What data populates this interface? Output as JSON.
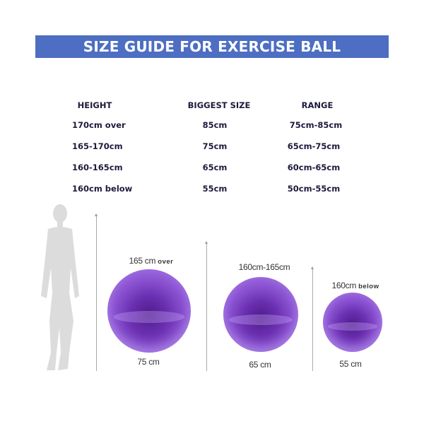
{
  "title": "SIZE GUIDE FOR EXERCISE BALL",
  "table": {
    "headers": [
      "HEIGHT",
      "BIGGEST SIZE",
      "RANGE"
    ],
    "rows": [
      [
        "170cm over",
        "85cm",
        "75cm-85cm"
      ],
      [
        "165-170cm",
        "75cm",
        "65cm-75cm"
      ],
      [
        "160-165cm",
        "65cm",
        "60cm-65cm"
      ],
      [
        "160cm below",
        "55cm",
        "50cm-55cm"
      ]
    ]
  },
  "illustration": {
    "balls": [
      {
        "height_label": "165 cm",
        "height_suffix": "over",
        "size_label": "75 cm"
      },
      {
        "height_label": "160cm-165cm",
        "height_suffix": "",
        "size_label": "65 cm"
      },
      {
        "height_label": "160cm",
        "height_suffix": "below",
        "size_label": "55 cm"
      }
    ],
    "ball_color": "#7a3fc4",
    "banner_color": "#4d6ec2",
    "silhouette_icon": "woman-silhouette-icon"
  }
}
